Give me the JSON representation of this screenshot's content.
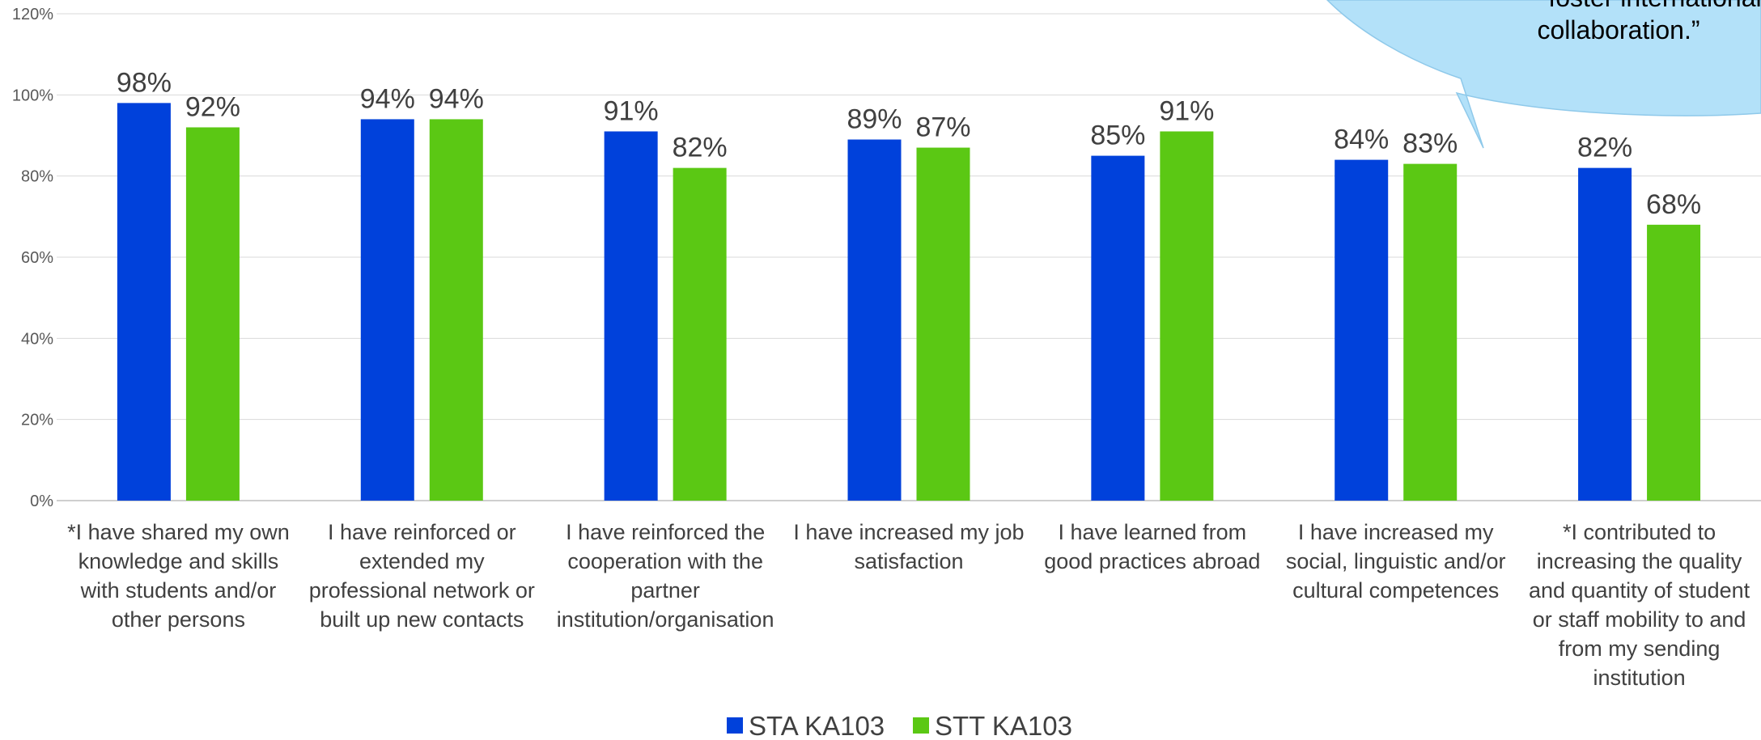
{
  "chart_data": {
    "type": "bar",
    "categories": [
      [
        "*I have shared my own",
        "knowledge and skills",
        "with students and/or",
        "other persons"
      ],
      [
        "I have reinforced or",
        "extended my",
        "professional network or",
        "built up new contacts"
      ],
      [
        "I have reinforced the",
        "cooperation with the",
        "partner",
        "institution/organisation"
      ],
      [
        "I have increased my job",
        "satisfaction"
      ],
      [
        "I have learned from",
        "good practices abroad"
      ],
      [
        "I have increased my",
        "social, linguistic and/or",
        "cultural competences"
      ],
      [
        "*I contributed to",
        "increasing the quality",
        "and quantity of student",
        "or staff mobility to and",
        "from my sending",
        "institution"
      ]
    ],
    "series": [
      {
        "name": "STA KA103",
        "color": "#0041DB",
        "values": [
          98,
          94,
          91,
          89,
          85,
          84,
          82
        ],
        "labels": [
          "98%",
          "94%",
          "91%",
          "89%",
          "85%",
          "84%",
          "82%"
        ]
      },
      {
        "name": "STT KA103",
        "color": "#5BC814",
        "values": [
          92,
          94,
          82,
          87,
          91,
          83,
          68
        ],
        "labels": [
          "92%",
          "94%",
          "82%",
          "87%",
          "91%",
          "83%",
          "68%"
        ]
      }
    ],
    "yticks": [
      "0%",
      "20%",
      "40%",
      "60%",
      "80%",
      "100%",
      "120%"
    ],
    "ylim": [
      0,
      120
    ],
    "grid": true,
    "legend": "bottom",
    "callout": {
      "lines": [
        "foster international",
        "collaboration.”"
      ],
      "color": "#B3E1F9"
    }
  }
}
